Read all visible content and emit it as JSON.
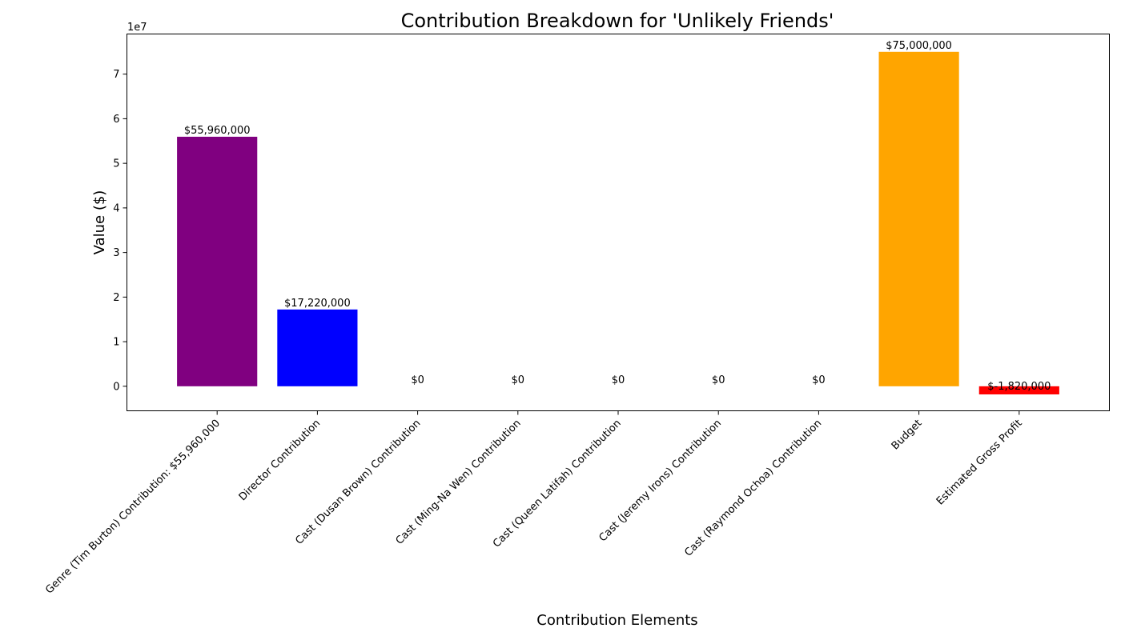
{
  "chart_data": {
    "type": "bar",
    "title": "Contribution Breakdown for 'Unlikely Friends'",
    "xlabel": "Contribution Elements",
    "ylabel": "Value ($)",
    "y_offset_label": "1e7",
    "ylim": [
      -5500000,
      79000000
    ],
    "y_ticks": [
      0,
      1,
      2,
      3,
      4,
      5,
      6,
      7
    ],
    "y_tick_scale": 10000000,
    "grid": false,
    "categories": [
      "Genre (Tim Burton) Contribution: $55,960,000",
      "Director Contribution",
      "Cast (Dusan Brown) Contribution",
      "Cast (Ming-Na Wen) Contribution",
      "Cast (Queen Latifah) Contribution",
      "Cast (Jeremy Irons) Contribution",
      "Cast (Raymond Ochoa) Contribution",
      "Budget",
      "Estimated Gross Profit"
    ],
    "values": [
      55960000,
      17220000,
      0,
      0,
      0,
      0,
      0,
      75000000,
      -1820000
    ],
    "data_labels": [
      "$55,960,000",
      "$17,220,000",
      "$0",
      "$0",
      "$0",
      "$0",
      "$0",
      "$75,000,000",
      "$-1,820,000"
    ],
    "colors": [
      "#800080",
      "#0000ff",
      "#1f77b4",
      "#1f77b4",
      "#1f77b4",
      "#1f77b4",
      "#1f77b4",
      "#ffa500",
      "#ff0000"
    ]
  }
}
